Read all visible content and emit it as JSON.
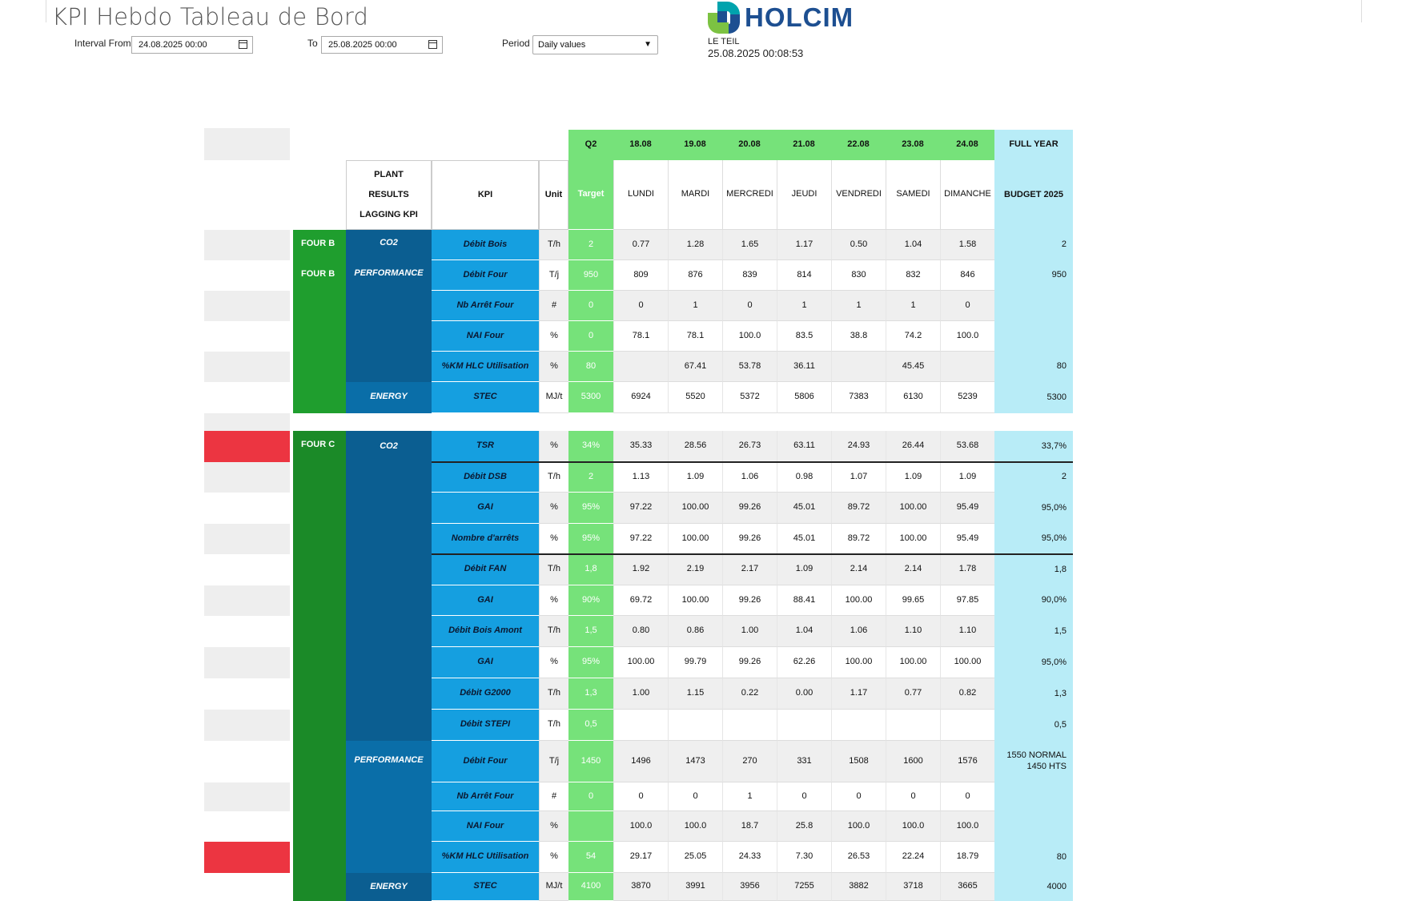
{
  "header": {
    "title": "KPI Hebdo Tableau de Bord",
    "interval_from_label": "Interval From",
    "interval_from_value": "24.08.2025 00:00",
    "to_label": "To",
    "to_value": "25.08.2025 00:00",
    "period_label": "Period",
    "period_value": "Daily values",
    "brand": "HOLCIM",
    "site": "LE TEIL",
    "timestamp": "25.08.2025 00:08:53",
    "colors": {
      "brand_blue": "#1d4f91",
      "brand_green": "#7cc242",
      "brand_teal": "#00a3ad"
    }
  },
  "table": {
    "header_quarter": "Q2",
    "header_dates": [
      "18.08",
      "19.08",
      "20.08",
      "21.08",
      "22.08",
      "23.08",
      "24.08"
    ],
    "header_full_year": "FULL YEAR",
    "plant_results_label": [
      "PLANT",
      "RESULTS",
      "LAGGING KPI"
    ],
    "kpi_label": "KPI",
    "unit_label": "Unit",
    "target_label": "Target",
    "day_names": [
      "LUNDI",
      "MARDI",
      "MERCREDI",
      "JEUDI",
      "VENDREDI",
      "SAMEDI",
      "DIMANCHE"
    ],
    "budget_label": "BUDGET 2025",
    "four_b_label": "FOUR B",
    "four_c_label": "FOUR C",
    "groups": {
      "b_co2": "CO2",
      "b_perf": "PERFORMANCE",
      "b_energy": "ENERGY",
      "c_co2": "CO2",
      "c_perf": "PERFORMANCE",
      "c_energy": "ENERGY"
    },
    "rows_b": [
      {
        "kpi": "Débit Bois",
        "unit": "T/h",
        "target": "2",
        "values": [
          "0.77",
          "1.28",
          "1.65",
          "1.17",
          "0.50",
          "1.04",
          "1.58"
        ],
        "budget": "2"
      },
      {
        "kpi": "Débit Four",
        "unit": "T/j",
        "target": "950",
        "values": [
          "809",
          "876",
          "839",
          "814",
          "830",
          "832",
          "846"
        ],
        "budget": "950"
      },
      {
        "kpi": "Nb Arrêt Four",
        "unit": "#",
        "target": "0",
        "values": [
          "0",
          "1",
          "0",
          "1",
          "1",
          "1",
          "0"
        ],
        "budget": ""
      },
      {
        "kpi": "NAI Four",
        "unit": "%",
        "target": "0",
        "values": [
          "78.1",
          "78.1",
          "100.0",
          "83.5",
          "38.8",
          "74.2",
          "100.0"
        ],
        "budget": ""
      },
      {
        "kpi": "%KM  HLC Utilisation",
        "unit": "%",
        "target": "80",
        "values": [
          "",
          "67.41",
          "53.78",
          "36.11",
          "",
          "45.45",
          ""
        ],
        "budget": "80"
      },
      {
        "kpi": "STEC",
        "unit": "MJ/t",
        "target": "5300",
        "values": [
          "6924",
          "5520",
          "5372",
          "5806",
          "7383",
          "6130",
          "5239"
        ],
        "budget": "5300"
      }
    ],
    "rows_c": [
      {
        "kpi": "TSR",
        "unit": "%",
        "target": "34%",
        "values": [
          "35.33",
          "28.56",
          "26.73",
          "63.11",
          "24.93",
          "26.44",
          "53.68"
        ],
        "budget": "33,7%"
      },
      {
        "kpi": "Débit DSB",
        "unit": "T/h",
        "target": "2",
        "values": [
          "1.13",
          "1.09",
          "1.06",
          "0.98",
          "1.07",
          "1.09",
          "1.09"
        ],
        "budget": "2"
      },
      {
        "kpi": "GAI",
        "unit": "%",
        "target": "95%",
        "values": [
          "97.22",
          "100.00",
          "99.26",
          "45.01",
          "89.72",
          "100.00",
          "95.49"
        ],
        "budget": "95,0%"
      },
      {
        "kpi": "Nombre d'arrêts",
        "unit": "%",
        "target": "95%",
        "values": [
          "97.22",
          "100.00",
          "99.26",
          "45.01",
          "89.72",
          "100.00",
          "95.49"
        ],
        "budget": "95,0%"
      },
      {
        "kpi": "Débit FAN",
        "unit": "T/h",
        "target": "1,8",
        "values": [
          "1.92",
          "2.19",
          "2.17",
          "1.09",
          "2.14",
          "2.14",
          "1.78"
        ],
        "budget": "1,8"
      },
      {
        "kpi": "GAI",
        "unit": "%",
        "target": "90%",
        "values": [
          "69.72",
          "100.00",
          "99.26",
          "88.41",
          "100.00",
          "99.65",
          "97.85"
        ],
        "budget": "90,0%"
      },
      {
        "kpi": "Débit Bois Amont",
        "unit": "T/h",
        "target": "1,5",
        "values": [
          "0.80",
          "0.86",
          "1.00",
          "1.04",
          "1.06",
          "1.10",
          "1.10"
        ],
        "budget": "1,5"
      },
      {
        "kpi": "GAI",
        "unit": "%",
        "target": "95%",
        "values": [
          "100.00",
          "99.79",
          "99.26",
          "62.26",
          "100.00",
          "100.00",
          "100.00"
        ],
        "budget": "95,0%"
      },
      {
        "kpi": "Débit G2000",
        "unit": "T/h",
        "target": "1,3",
        "values": [
          "1.00",
          "1.15",
          "0.22",
          "0.00",
          "1.17",
          "0.77",
          "0.82"
        ],
        "budget": "1,3"
      },
      {
        "kpi": "Débit STEPI",
        "unit": "T/h",
        "target": "0,5",
        "values": [
          "",
          "",
          "",
          "",
          "",
          "",
          ""
        ],
        "budget": "0,5"
      },
      {
        "kpi": "Débit Four",
        "unit": "T/j",
        "target": "1450",
        "values": [
          "1496",
          "1473",
          "270",
          "331",
          "1508",
          "1600",
          "1576"
        ],
        "budget": "1550 NORMAL\n1450 HTS"
      },
      {
        "kpi": "Nb Arrêt Four",
        "unit": "#",
        "target": "0",
        "values": [
          "0",
          "0",
          "1",
          "0",
          "0",
          "0",
          "0"
        ],
        "budget": ""
      },
      {
        "kpi": "NAI Four",
        "unit": "%",
        "target": "",
        "values": [
          "100.0",
          "100.0",
          "18.7",
          "25.8",
          "100.0",
          "100.0",
          "100.0"
        ],
        "budget": ""
      },
      {
        "kpi": "%KM  HLC Utilisation",
        "unit": "%",
        "target": "54",
        "values": [
          "29.17",
          "25.05",
          "24.33",
          "7.30",
          "26.53",
          "22.24",
          "18.79"
        ],
        "budget": "80"
      },
      {
        "kpi": "STEC",
        "unit": "MJ/t",
        "target": "4100",
        "values": [
          "3870",
          "3991",
          "3956",
          "7255",
          "3882",
          "3718",
          "3665"
        ],
        "budget": "4000"
      }
    ]
  }
}
